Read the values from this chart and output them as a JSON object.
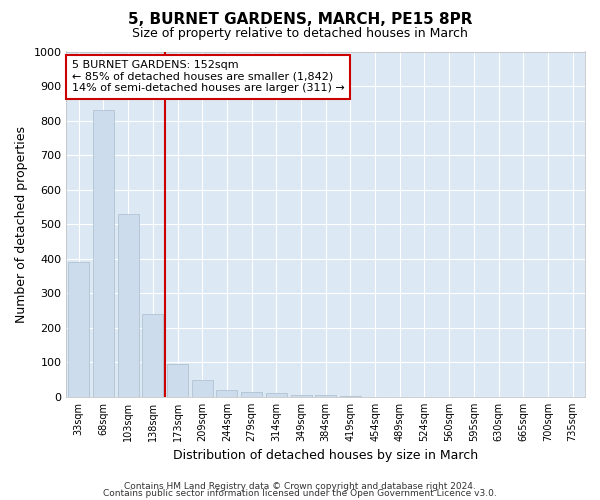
{
  "title": "5, BURNET GARDENS, MARCH, PE15 8PR",
  "subtitle": "Size of property relative to detached houses in March",
  "xlabel": "Distribution of detached houses by size in March",
  "ylabel": "Number of detached properties",
  "bar_color": "#ccdcec",
  "bar_edge_color": "#aabccc",
  "categories": [
    "33sqm",
    "68sqm",
    "103sqm",
    "138sqm",
    "173sqm",
    "209sqm",
    "244sqm",
    "279sqm",
    "314sqm",
    "349sqm",
    "384sqm",
    "419sqm",
    "454sqm",
    "489sqm",
    "524sqm",
    "560sqm",
    "595sqm",
    "630sqm",
    "665sqm",
    "700sqm",
    "735sqm"
  ],
  "values": [
    390,
    830,
    530,
    240,
    95,
    50,
    20,
    13,
    10,
    7,
    5,
    3,
    0,
    0,
    0,
    0,
    0,
    0,
    0,
    0,
    0
  ],
  "vline_x": 3.5,
  "vline_color": "#cc0000",
  "ylim": [
    0,
    1000
  ],
  "yticks": [
    0,
    100,
    200,
    300,
    400,
    500,
    600,
    700,
    800,
    900,
    1000
  ],
  "annotation_title": "5 BURNET GARDENS: 152sqm",
  "annotation_line1": "← 85% of detached houses are smaller (1,842)",
  "annotation_line2": "14% of semi-detached houses are larger (311) →",
  "annotation_box_color": "#ffffff",
  "annotation_box_edge": "#cc0000",
  "fig_background": "#ffffff",
  "plot_background": "#dce8f4",
  "grid_color": "#ffffff",
  "footer1": "Contains HM Land Registry data © Crown copyright and database right 2024.",
  "footer2": "Contains public sector information licensed under the Open Government Licence v3.0."
}
